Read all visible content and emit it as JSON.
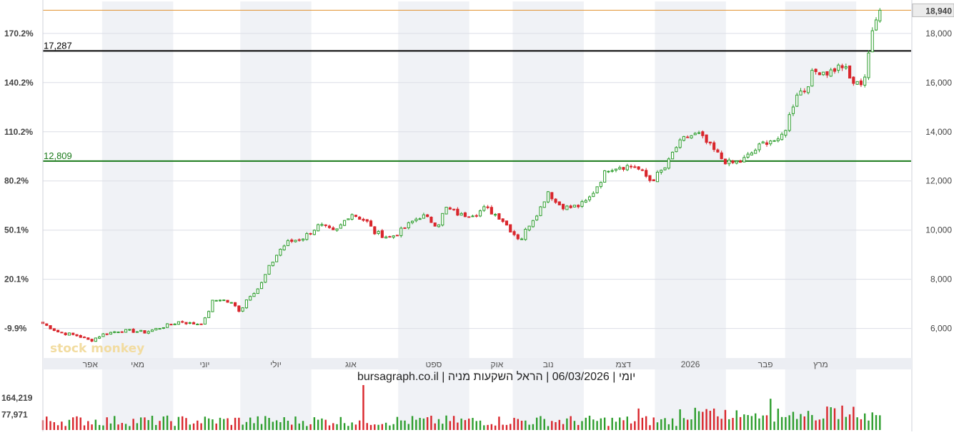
{
  "caption": "יומי | 06/03/2026 | הראל השקעות מניה | bursagraph.co.il",
  "watermark": "stock monkey",
  "colors": {
    "up": "#2e9e2e",
    "down": "#d9262c",
    "resistance": "#000000",
    "support": "#1a7a1a",
    "last_price_line": "#e0902c",
    "band": "#f0f2f6",
    "grid": "#dcdee6"
  },
  "chart_data": {
    "type": "candlestick",
    "symbol": "הראל השקעות מניה",
    "interval": "יומי",
    "date": "06/03/2026",
    "source": "bursagraph.co.il",
    "price_axis": {
      "ticks": [
        6000,
        8000,
        10000,
        12000,
        14000,
        16000,
        18000
      ],
      "tick_labels": [
        "6,000",
        "8,000",
        "10,000",
        "12,000",
        "14,000",
        "16,000",
        "18,000"
      ],
      "ylim": [
        4800,
        19300
      ]
    },
    "percent_axis": {
      "tick_labels": [
        "-9.9%",
        "20.1%",
        "50.1%",
        "80.2%",
        "110.2%",
        "140.2%",
        "170.2%"
      ],
      "tick_prices": [
        6000,
        8000,
        10000,
        12000,
        14000,
        16000,
        18000
      ]
    },
    "last_price": 18940,
    "last_price_label": "18,940",
    "levels": [
      {
        "value": 17287,
        "label": "17,287",
        "kind": "resistance"
      },
      {
        "value": 12809,
        "label": "12,809",
        "kind": "support"
      }
    ],
    "months": [
      "אפר",
      "מאי",
      "יוני",
      "יולי",
      "אוג",
      "ספט",
      "אוק",
      "נוב",
      "דצמ",
      "2026",
      "פבר",
      "מרץ"
    ],
    "month_positions": [
      0.06,
      0.12,
      0.205,
      0.295,
      0.39,
      0.495,
      0.575,
      0.64,
      0.735,
      0.82,
      0.915,
      0.985
    ],
    "volume_axis": {
      "tick_labels": [
        "164,219",
        "77,971"
      ],
      "tick_values": [
        164219,
        77971
      ]
    },
    "path_points": [
      [
        0,
        6200
      ],
      [
        0.02,
        5850
      ],
      [
        0.045,
        5700
      ],
      [
        0.06,
        5500
      ],
      [
        0.075,
        5750
      ],
      [
        0.095,
        5900
      ],
      [
        0.11,
        5900
      ],
      [
        0.13,
        5850
      ],
      [
        0.15,
        6050
      ],
      [
        0.175,
        6300
      ],
      [
        0.185,
        6200
      ],
      [
        0.2,
        6200
      ],
      [
        0.205,
        6350
      ],
      [
        0.215,
        7100
      ],
      [
        0.225,
        7200
      ],
      [
        0.24,
        7000
      ],
      [
        0.25,
        6700
      ],
      [
        0.26,
        7300
      ],
      [
        0.275,
        7700
      ],
      [
        0.285,
        8400
      ],
      [
        0.3,
        9200
      ],
      [
        0.31,
        9500
      ],
      [
        0.33,
        9700
      ],
      [
        0.35,
        10200
      ],
      [
        0.37,
        9900
      ],
      [
        0.38,
        10300
      ],
      [
        0.39,
        10700
      ],
      [
        0.41,
        10350
      ],
      [
        0.42,
        9900
      ],
      [
        0.44,
        9700
      ],
      [
        0.455,
        10000
      ],
      [
        0.47,
        10400
      ],
      [
        0.48,
        10600
      ],
      [
        0.5,
        10200
      ],
      [
        0.51,
        10900
      ],
      [
        0.53,
        10600
      ],
      [
        0.55,
        10700
      ],
      [
        0.56,
        10900
      ],
      [
        0.58,
        10500
      ],
      [
        0.595,
        9900
      ],
      [
        0.605,
        9600
      ],
      [
        0.615,
        10200
      ],
      [
        0.63,
        10900
      ],
      [
        0.64,
        11600
      ],
      [
        0.65,
        11100
      ],
      [
        0.665,
        10900
      ],
      [
        0.68,
        11000
      ],
      [
        0.69,
        11200
      ],
      [
        0.7,
        11700
      ],
      [
        0.715,
        12500
      ],
      [
        0.73,
        12600
      ],
      [
        0.75,
        12600
      ],
      [
        0.76,
        12300
      ],
      [
        0.77,
        12000
      ],
      [
        0.78,
        12300
      ],
      [
        0.79,
        12600
      ],
      [
        0.8,
        13300
      ],
      [
        0.815,
        13800
      ],
      [
        0.83,
        13900
      ],
      [
        0.845,
        13400
      ],
      [
        0.86,
        12900
      ],
      [
        0.87,
        12700
      ],
      [
        0.885,
        12800
      ],
      [
        0.9,
        13200
      ],
      [
        0.915,
        13600
      ],
      [
        0.925,
        13700
      ],
      [
        0.93,
        13500
      ],
      [
        0.94,
        14100
      ],
      [
        0.955,
        15600
      ],
      [
        0.965,
        15700
      ],
      [
        0.975,
        16400
      ],
      [
        0.985,
        16500
      ],
      [
        0.995,
        16400
      ],
      [
        1.005,
        16600
      ],
      [
        1.015,
        16700
      ],
      [
        1.02,
        16200
      ],
      [
        1.03,
        15900
      ],
      [
        1.04,
        16100
      ]
    ],
    "final_points": [
      [
        1.046,
        17300
      ],
      [
        1.05,
        17900
      ],
      [
        1.055,
        18500
      ],
      [
        1.06,
        18940
      ]
    ]
  }
}
